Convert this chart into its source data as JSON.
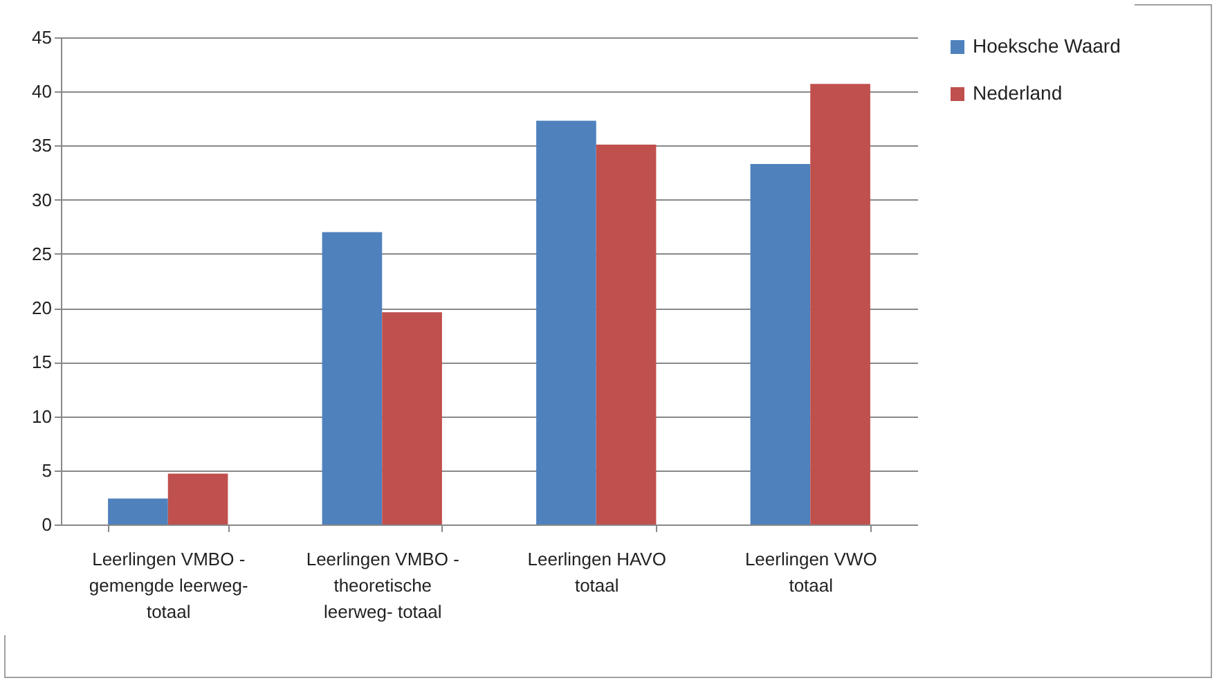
{
  "chart_data": {
    "type": "bar",
    "categories": [
      "Leerlingen VMBO - gemengde leerweg- totaal",
      "Leerlingen VMBO - theoretische leerweg- totaal",
      "Leerlingen HAVO totaal",
      "Leerlingen VWO totaal"
    ],
    "series": [
      {
        "name": "Hoeksche Waard",
        "color": "#4f81bd",
        "values": [
          2.4,
          27.0,
          37.3,
          33.3
        ]
      },
      {
        "name": "Nederland",
        "color": "#c0504d",
        "values": [
          4.7,
          19.6,
          35.1,
          40.7
        ]
      }
    ],
    "ylim": [
      0,
      45
    ],
    "yticks": [
      0,
      5,
      10,
      15,
      20,
      25,
      30,
      35,
      40,
      45
    ],
    "grid": "y",
    "legend": "right"
  }
}
